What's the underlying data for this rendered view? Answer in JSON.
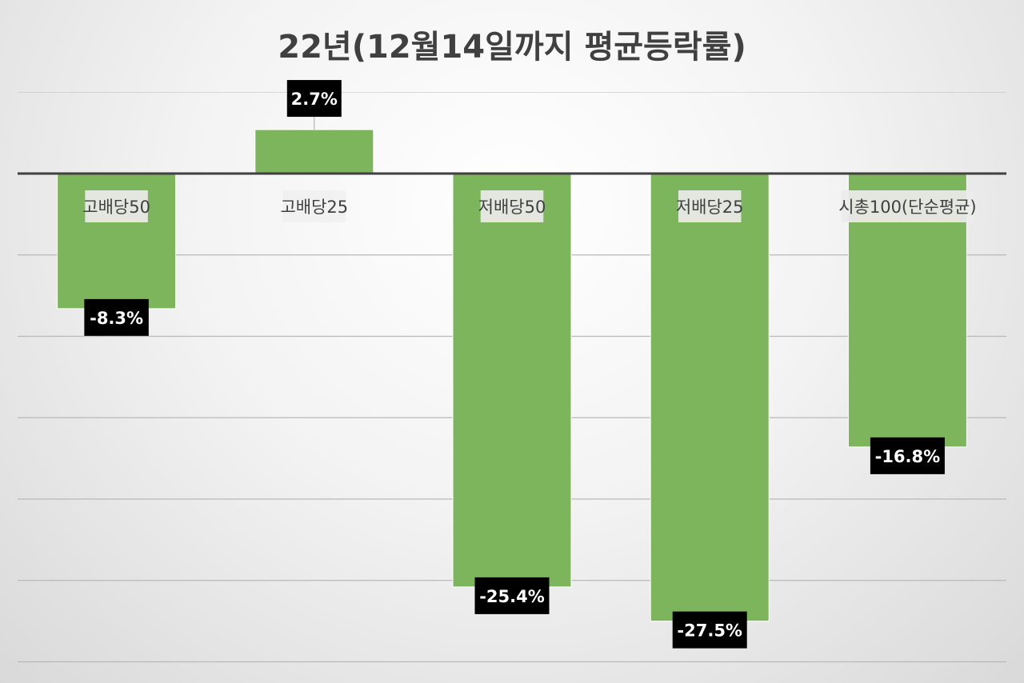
{
  "chart_data": {
    "type": "bar",
    "title": "22년(12월14일까지 평균등락률)",
    "categories": [
      "고배당50",
      "고배당25",
      "저배당50",
      "저배당25",
      "시총100(단순평균)"
    ],
    "series": [
      {
        "values": [
          -8.3,
          2.7,
          -25.4,
          -27.5,
          -16.8
        ],
        "data_labels": [
          "-8.3%",
          "2.7%",
          "-25.4%",
          "-27.5%",
          "-16.8%"
        ]
      }
    ],
    "ylim": [
      -30,
      5
    ],
    "grid": true,
    "legend": "none",
    "colors": {
      "bar": "#7db55c",
      "bar_border": "#ffffff",
      "zero_line": "#404040",
      "grid": "#b8b8b8",
      "label_bg": "#000000",
      "category_label_bg": "#ececec",
      "title": "#404040"
    }
  }
}
